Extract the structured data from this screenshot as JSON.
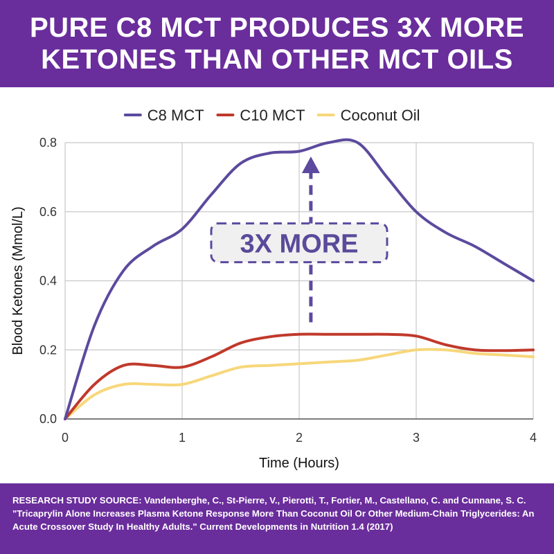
{
  "header": {
    "line1": "PURE C8 MCT PRODUCES 3X MORE",
    "line2": "KETONES THAN OTHER MCT OILS"
  },
  "footer": {
    "source": "RESEARCH STUDY SOURCE: Vandenberghe, C., St-Pierre, V., Pierotti, T., Fortier, M., Castellano, C. and Cunnane, S. C. \"Tricaprylin Alone Increases Plasma Ketone Response More Than Coconut Oil Or Other Medium-Chain Triglycerides: An Acute Crossover Study In Healthy Adults.\" Current Developments in Nutrition 1.4 (2017)"
  },
  "colors": {
    "banner": "#6a2d9c",
    "c8": "#5c4a9e",
    "c10": "#c0392b",
    "coconut": "#f7d77a",
    "grid": "#c8c8c8"
  },
  "chart_data": {
    "type": "line",
    "title": "",
    "xlabel": "Time (Hours)",
    "ylabel": "Blood Ketones (Mmol/L)",
    "xlim": [
      0,
      4
    ],
    "ylim": [
      0,
      0.8
    ],
    "xticks": [
      0,
      1,
      2,
      3,
      4
    ],
    "yticks": [
      0.0,
      0.2,
      0.4,
      0.6,
      0.8
    ],
    "xtick_labels": [
      "0",
      "1",
      "2",
      "3",
      "4"
    ],
    "ytick_labels": [
      "0.0",
      "0.2",
      "0.4",
      "0.6",
      "0.8"
    ],
    "grid": true,
    "legend_position": "top",
    "series": [
      {
        "name": "C8 MCT",
        "color": "#5c4a9e",
        "x": [
          0,
          0.25,
          0.5,
          0.75,
          1,
          1.25,
          1.5,
          1.75,
          2,
          2.25,
          2.5,
          2.75,
          3,
          3.25,
          3.5,
          3.75,
          4
        ],
        "y": [
          0.0,
          0.27,
          0.43,
          0.5,
          0.55,
          0.65,
          0.74,
          0.77,
          0.775,
          0.8,
          0.8,
          0.7,
          0.6,
          0.54,
          0.5,
          0.45,
          0.4
        ]
      },
      {
        "name": "C10 MCT",
        "color": "#c0392b",
        "x": [
          0,
          0.25,
          0.5,
          0.75,
          1,
          1.25,
          1.5,
          1.75,
          2,
          2.25,
          2.5,
          2.75,
          3,
          3.25,
          3.5,
          3.75,
          4
        ],
        "y": [
          0.0,
          0.1,
          0.155,
          0.155,
          0.15,
          0.18,
          0.22,
          0.238,
          0.245,
          0.245,
          0.245,
          0.245,
          0.24,
          0.215,
          0.2,
          0.198,
          0.2
        ]
      },
      {
        "name": "Coconut Oil",
        "color": "#f7d77a",
        "x": [
          0,
          0.25,
          0.5,
          0.75,
          1,
          1.25,
          1.5,
          1.75,
          2,
          2.25,
          2.5,
          2.75,
          3,
          3.25,
          3.5,
          3.75,
          4
        ],
        "y": [
          0.0,
          0.07,
          0.1,
          0.1,
          0.1,
          0.125,
          0.15,
          0.155,
          0.16,
          0.165,
          0.17,
          0.185,
          0.2,
          0.2,
          0.19,
          0.185,
          0.18
        ]
      }
    ],
    "annotations": [
      {
        "text": "3X MORE",
        "arrow_x": 2.1,
        "arrow_y_from": 0.28,
        "arrow_y_to": 0.76,
        "box_x": 2.0,
        "box_y": 0.51
      }
    ]
  }
}
